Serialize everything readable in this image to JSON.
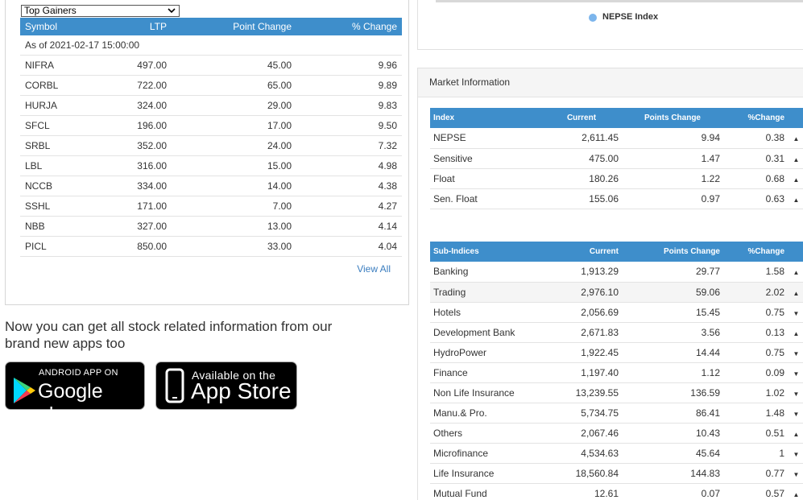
{
  "gainers": {
    "select_value": "Top Gainers",
    "headers": {
      "symbol": "Symbol",
      "ltp": "LTP",
      "point_change": "Point Change",
      "pct_change": "% Change"
    },
    "as_of": "As of 2021-02-17 15:00:00",
    "rows": [
      {
        "symbol": "NIFRA",
        "ltp": "497.00",
        "point_change": "45.00",
        "pct_change": "9.96"
      },
      {
        "symbol": "CORBL",
        "ltp": "722.00",
        "point_change": "65.00",
        "pct_change": "9.89"
      },
      {
        "symbol": "HURJA",
        "ltp": "324.00",
        "point_change": "29.00",
        "pct_change": "9.83"
      },
      {
        "symbol": "SFCL",
        "ltp": "196.00",
        "point_change": "17.00",
        "pct_change": "9.50"
      },
      {
        "symbol": "SRBL",
        "ltp": "352.00",
        "point_change": "24.00",
        "pct_change": "7.32"
      },
      {
        "symbol": "LBL",
        "ltp": "316.00",
        "point_change": "15.00",
        "pct_change": "4.98"
      },
      {
        "symbol": "NCCB",
        "ltp": "334.00",
        "point_change": "14.00",
        "pct_change": "4.38"
      },
      {
        "symbol": "SSHL",
        "ltp": "171.00",
        "point_change": "7.00",
        "pct_change": "4.27"
      },
      {
        "symbol": "NBB",
        "ltp": "327.00",
        "point_change": "13.00",
        "pct_change": "4.14"
      },
      {
        "symbol": "PICL",
        "ltp": "850.00",
        "point_change": "33.00",
        "pct_change": "4.04"
      }
    ],
    "view_all": "View All"
  },
  "promo": {
    "text": "Now you can get all stock related information from our brand new apps too",
    "android_small": "ANDROID APP ON",
    "android_big": "Google play",
    "apple_small": "Available on the",
    "apple_big": "App Store"
  },
  "legend": {
    "label": "NEPSE Index",
    "color": "#7cb5ec"
  },
  "market": {
    "title": "Market Information",
    "index_headers": {
      "name": "Index",
      "current": "Current",
      "points": "Points Change",
      "pct": "%Change"
    },
    "indices": [
      {
        "name": "NEPSE",
        "current": "2,611.45",
        "points": "9.94",
        "pct": "0.38",
        "dir": "up"
      },
      {
        "name": "Sensitive",
        "current": "475.00",
        "points": "1.47",
        "pct": "0.31",
        "dir": "up"
      },
      {
        "name": "Float",
        "current": "180.26",
        "points": "1.22",
        "pct": "0.68",
        "dir": "up"
      },
      {
        "name": "Sen. Float",
        "current": "155.06",
        "points": "0.97",
        "pct": "0.63",
        "dir": "up"
      }
    ],
    "sub_headers": {
      "name": "Sub-Indices",
      "current": "Current",
      "points": "Points Change",
      "pct": "%Change"
    },
    "sub_indices": [
      {
        "name": "Banking",
        "current": "1,913.29",
        "points": "29.77",
        "pct": "1.58",
        "dir": "up"
      },
      {
        "name": "Trading",
        "current": "2,976.10",
        "points": "59.06",
        "pct": "2.02",
        "dir": "up"
      },
      {
        "name": "Hotels",
        "current": "2,056.69",
        "points": "15.45",
        "pct": "0.75",
        "dir": "down"
      },
      {
        "name": "Development Bank",
        "current": "2,671.83",
        "points": "3.56",
        "pct": "0.13",
        "dir": "up"
      },
      {
        "name": "HydroPower",
        "current": "1,922.45",
        "points": "14.44",
        "pct": "0.75",
        "dir": "down"
      },
      {
        "name": "Finance",
        "current": "1,197.40",
        "points": "1.12",
        "pct": "0.09",
        "dir": "down"
      },
      {
        "name": "Non Life Insurance",
        "current": "13,239.55",
        "points": "136.59",
        "pct": "1.02",
        "dir": "down"
      },
      {
        "name": "Manu.& Pro.",
        "current": "5,734.75",
        "points": "86.41",
        "pct": "1.48",
        "dir": "down"
      },
      {
        "name": "Others",
        "current": "2,067.46",
        "points": "10.43",
        "pct": "0.51",
        "dir": "up"
      },
      {
        "name": "Microfinance",
        "current": "4,534.63",
        "points": "45.64",
        "pct": "1",
        "dir": "down"
      },
      {
        "name": "Life Insurance",
        "current": "18,560.84",
        "points": "144.83",
        "pct": "0.77",
        "dir": "down"
      },
      {
        "name": "Mutual Fund",
        "current": "12.61",
        "points": "0.07",
        "pct": "0.57",
        "dir": "up"
      }
    ]
  }
}
